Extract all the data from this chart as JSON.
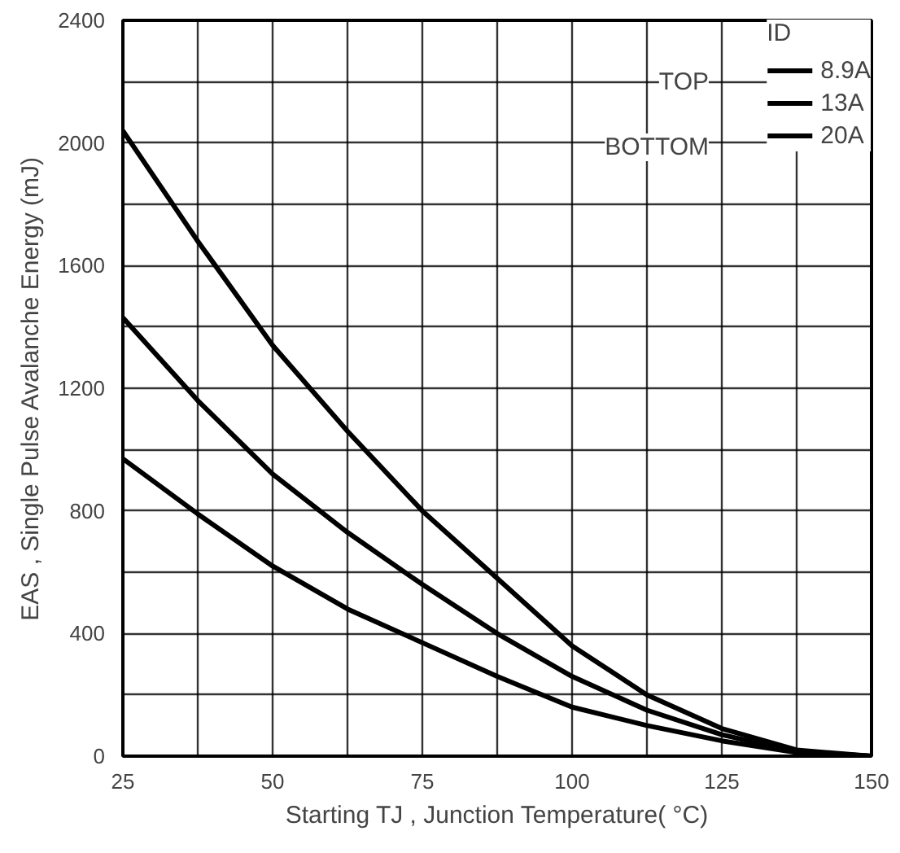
{
  "chart_data": {
    "type": "line",
    "xlabel": "Starting TJ , Junction Temperature( °C)",
    "ylabel": "EAS , Single Pulse Avalanche Energy (mJ)",
    "legend_title": "ID",
    "annotations": [
      "TOP",
      "BOTTOM"
    ],
    "x": [
      25,
      37.5,
      50,
      62.5,
      75,
      87.5,
      100,
      112.5,
      125,
      137.5,
      150
    ],
    "series": [
      {
        "name": "8.9A",
        "color": "#000000",
        "values": [
          2040,
          1680,
          1340,
          1060,
          800,
          580,
          360,
          200,
          90,
          20,
          0
        ]
      },
      {
        "name": "13A",
        "color": "#000000",
        "values": [
          1430,
          1160,
          920,
          730,
          560,
          400,
          260,
          150,
          70,
          15,
          0
        ]
      },
      {
        "name": "20A",
        "color": "#000000",
        "values": [
          970,
          790,
          620,
          480,
          370,
          260,
          160,
          100,
          50,
          12,
          0
        ]
      }
    ],
    "xlim": [
      25,
      150
    ],
    "ylim": [
      0,
      2400
    ],
    "xticks": [
      25,
      50,
      75,
      100,
      125,
      150
    ],
    "yticks": [
      0,
      400,
      800,
      1200,
      1600,
      2000,
      2400
    ],
    "grid": true,
    "legend": "top right",
    "line_style": "solid",
    "marker": "none"
  }
}
